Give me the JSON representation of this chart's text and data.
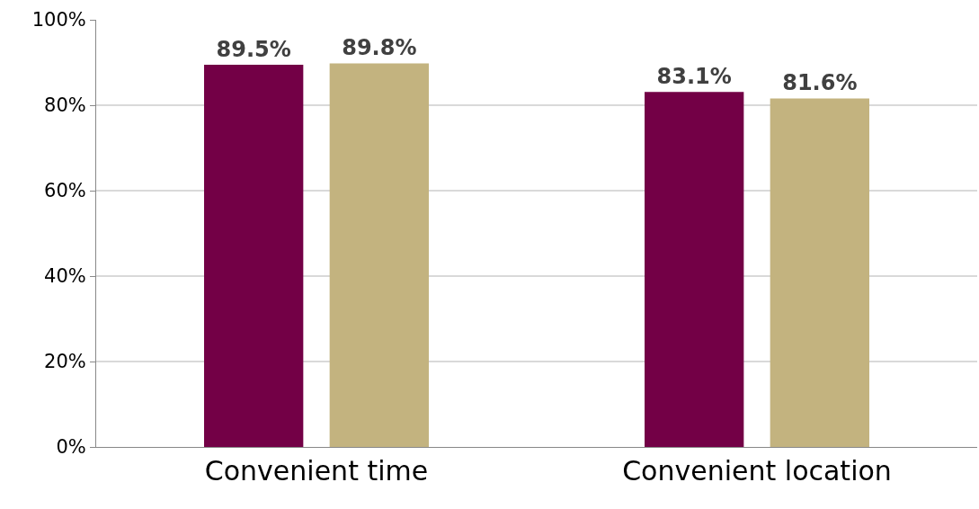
{
  "chart_data": {
    "type": "bar",
    "categories": [
      "Convenient time",
      "Convenient location"
    ],
    "series": [
      {
        "color": "#730046",
        "values": [
          89.5,
          83.1
        ],
        "value_labels": [
          "89.5%",
          "83.1%"
        ]
      },
      {
        "color": "#c3b37f",
        "values": [
          89.8,
          81.6
        ],
        "value_labels": [
          "89.8%",
          "81.6%"
        ]
      }
    ],
    "ylim": [
      0,
      100
    ],
    "yticks": [
      {
        "value": 0,
        "label": "0%"
      },
      {
        "value": 20,
        "label": "20%"
      },
      {
        "value": 40,
        "label": "40%"
      },
      {
        "value": 60,
        "label": "60%"
      },
      {
        "value": 80,
        "label": "80%"
      },
      {
        "value": 100,
        "label": "100%"
      }
    ],
    "grid": "y"
  }
}
